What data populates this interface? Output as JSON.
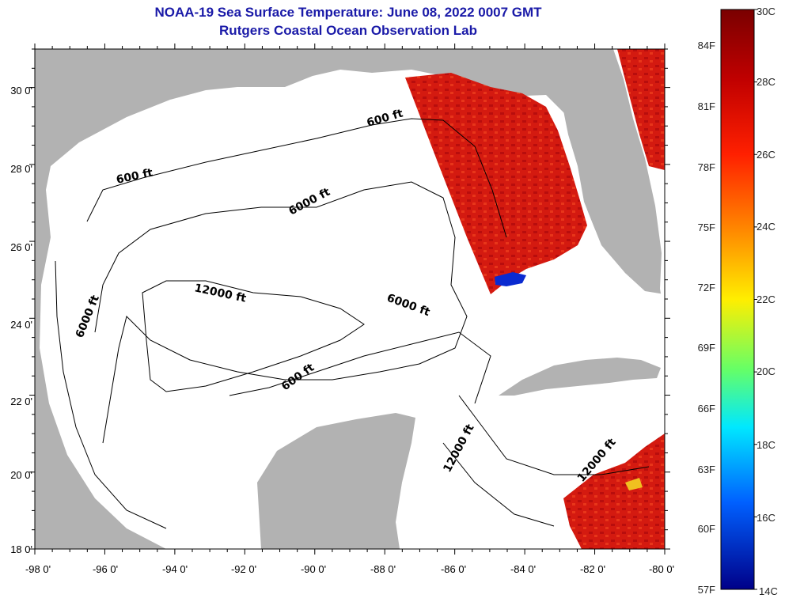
{
  "header": {
    "title": "NOAA-19 Sea Surface Temperature:  June 08, 2022 0007 GMT",
    "subtitle": "Rutgers Coastal Ocean Observation Lab"
  },
  "map": {
    "region": "Gulf of Mexico",
    "lat_labels": [
      "30 0'",
      "28 0'",
      "26 0'",
      "24 0'",
      "22 0'",
      "20 0'",
      "18 0'"
    ],
    "lon_labels": [
      "-98 0'",
      "-96 0'",
      "-94 0'",
      "-92 0'",
      "-90 0'",
      "-88 0'",
      "-86 0'",
      "-84 0'",
      "-82 0'",
      "-80 0'"
    ],
    "contour_labels": [
      "600 ft",
      "600 ft",
      "6000 ft",
      "12000 ft",
      "6000 ft",
      "6000 ft",
      "600 ft",
      "12000 ft",
      "12000 ft"
    ],
    "colors": {
      "land": "#b2b2b2",
      "ocean_nodata": "#ffffff",
      "sst_hot": "#c01010",
      "sst_warm": "#e02010",
      "contour": "#000000"
    }
  },
  "colorbar": {
    "celsius_labels": [
      "30C",
      "28C",
      "26C",
      "24C",
      "22C",
      "20C",
      "18C",
      "16C",
      "14C"
    ],
    "fahrenheit_labels": [
      "84F",
      "81F",
      "78F",
      "75F",
      "72F",
      "69F",
      "66F",
      "63F",
      "60F",
      "57F"
    ]
  }
}
